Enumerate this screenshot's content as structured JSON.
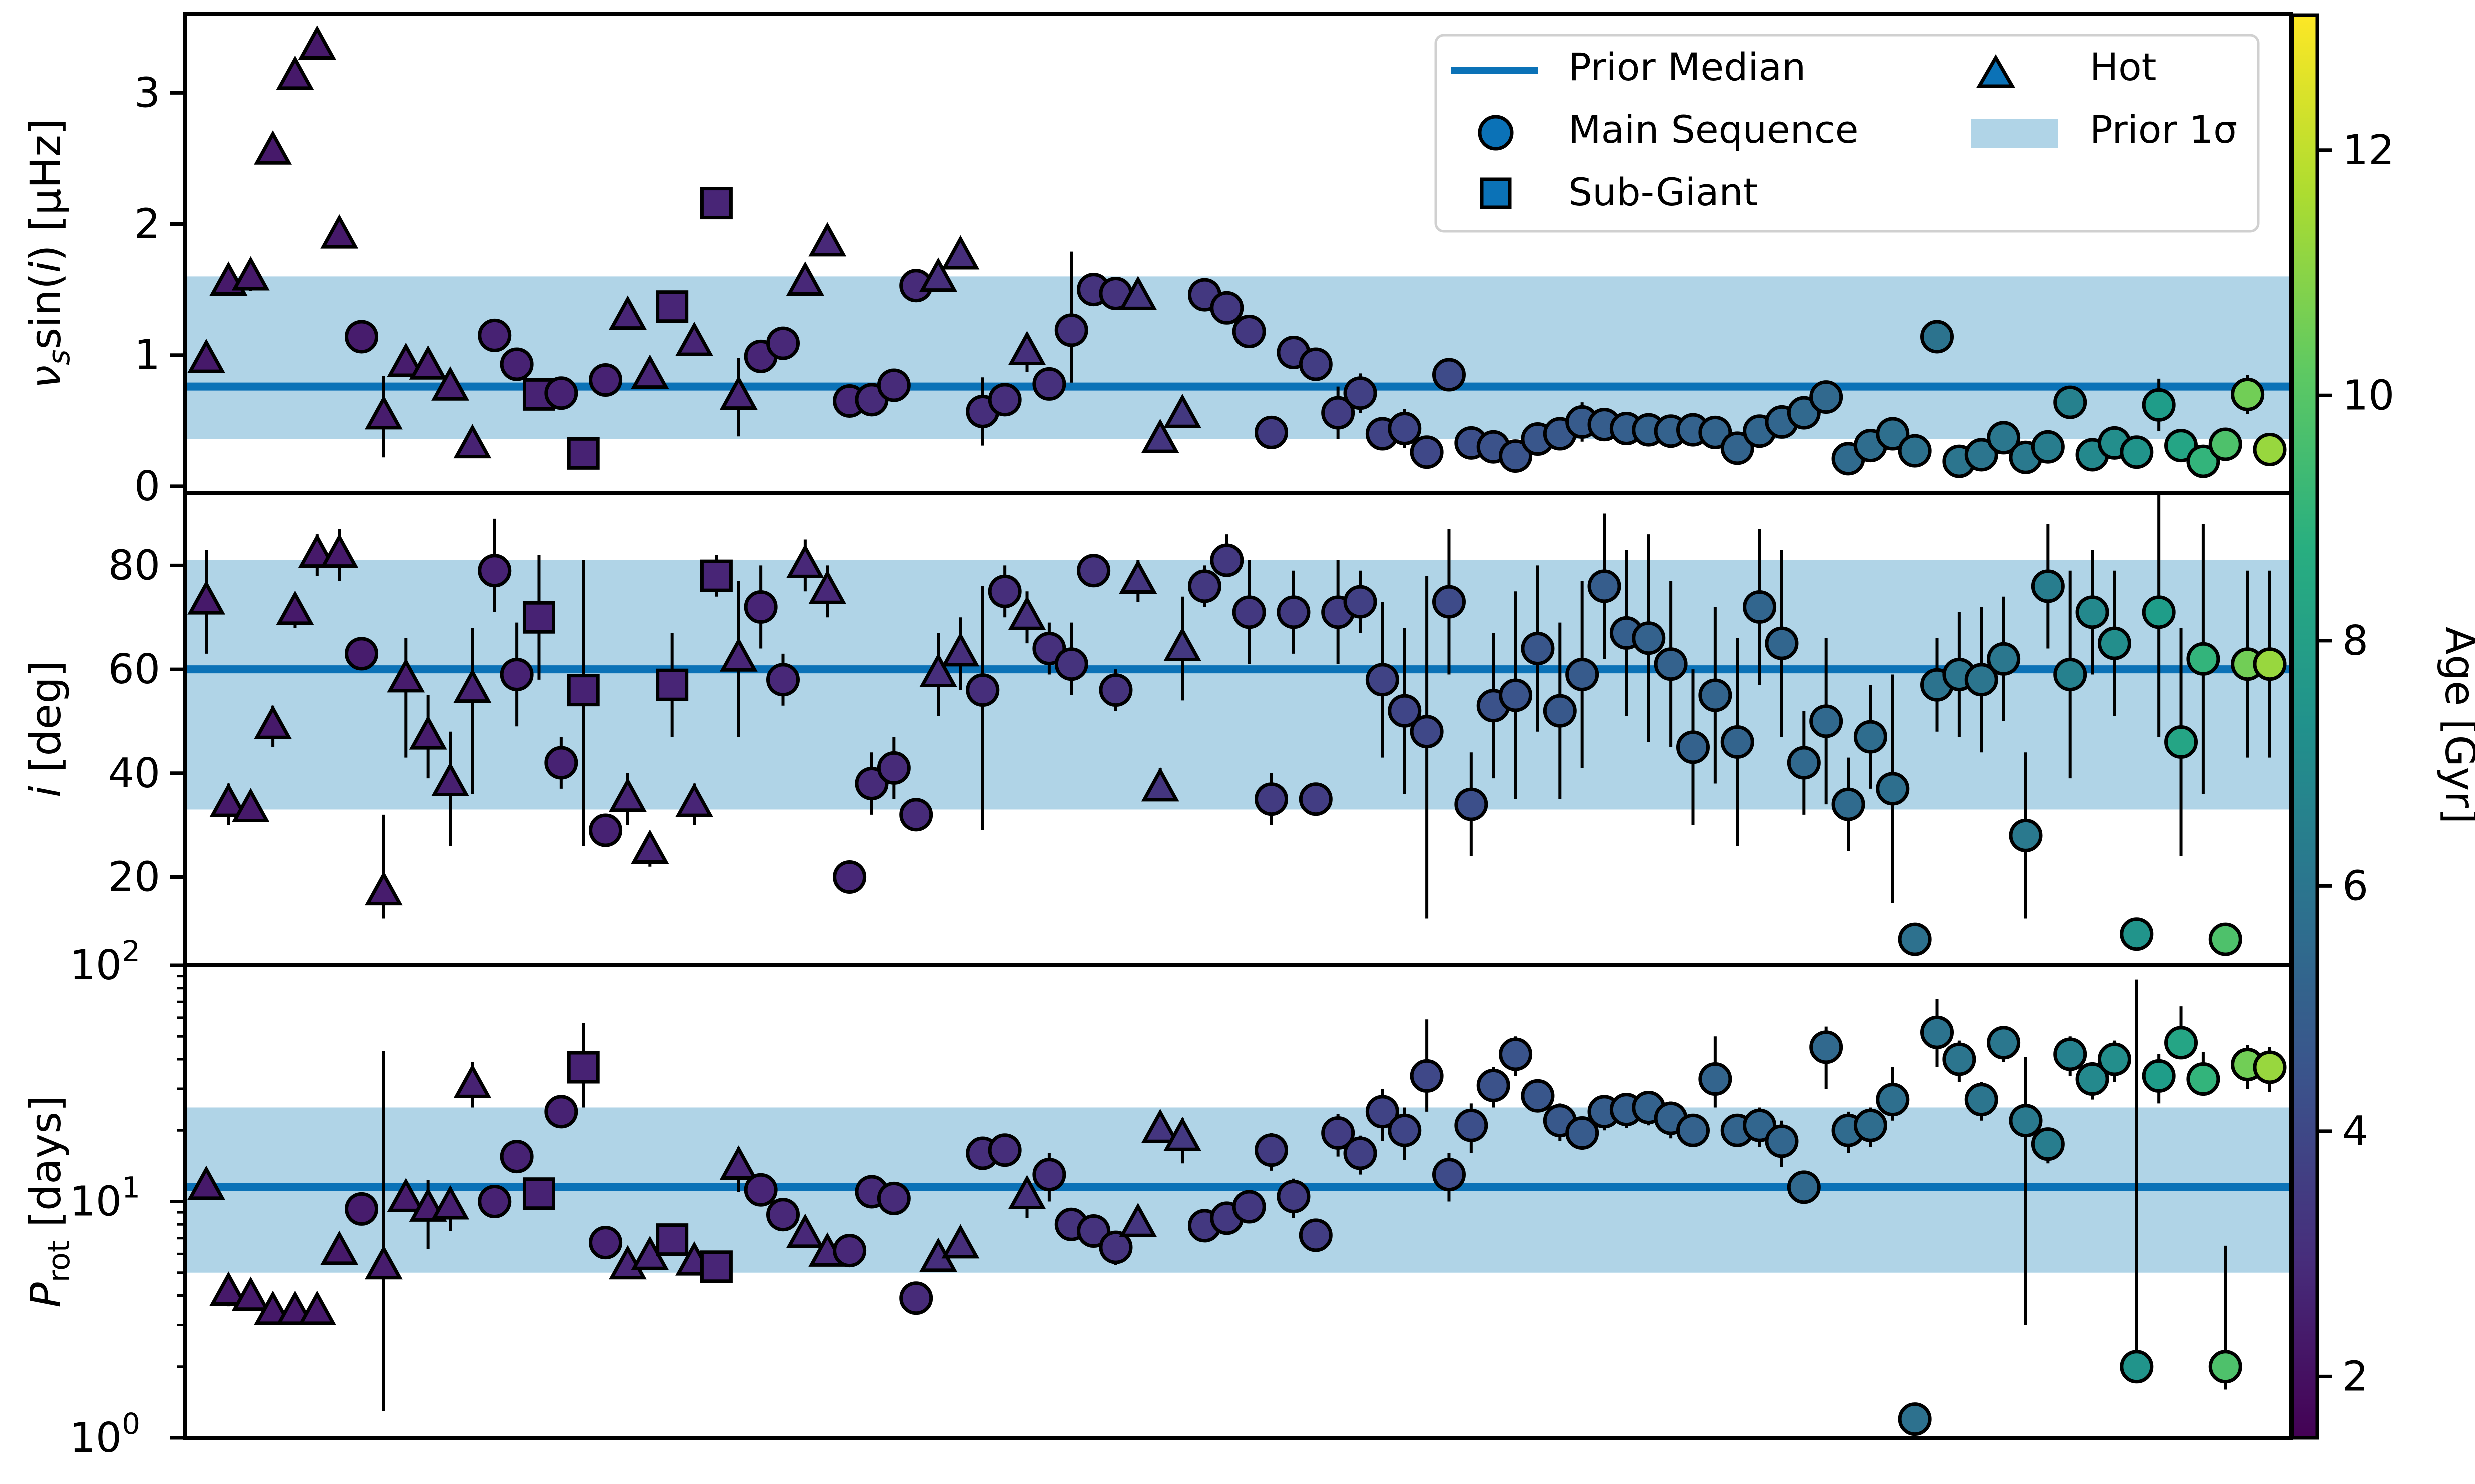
{
  "chart_data": {
    "type": "scatter",
    "x_count": 94,
    "colorbar": {
      "label": "Age [Gyr]",
      "range": [
        1.5,
        13.1
      ],
      "ticks": [
        2,
        4,
        6,
        8,
        10,
        12
      ],
      "colormap": "viridis"
    },
    "legend": {
      "placement": "top-right of top panel",
      "entries": [
        {
          "label": "Prior Median",
          "symbol": "line",
          "color": "#0b72b7"
        },
        {
          "label": "Hot",
          "symbol": "triangle",
          "color": "#0b72b7"
        },
        {
          "label": "Main Sequence",
          "symbol": "circle",
          "color": "#0b72b7"
        },
        {
          "label": "Prior 1σ",
          "symbol": "band",
          "color": "#b0d4e7"
        },
        {
          "label": "Sub-Giant",
          "symbol": "square",
          "color": "#0b72b7"
        }
      ]
    },
    "colors": {
      "prior_line": "#0b72b7",
      "prior_band": "#b0d4e7"
    },
    "markers": [
      "T",
      "T",
      "T",
      "T",
      "T",
      "T",
      "T",
      "C",
      "T",
      "T",
      "T",
      "T",
      "T",
      "C",
      "C",
      "S",
      "C",
      "S",
      "C",
      "T",
      "T",
      "S",
      "T",
      "S",
      "T",
      "C",
      "C",
      "T",
      "T",
      "C",
      "C",
      "C",
      "C",
      "T",
      "T",
      "C",
      "C",
      "T",
      "C",
      "C",
      "C",
      "C",
      "T",
      "T",
      "T",
      "C",
      "C",
      "C",
      "C",
      "C",
      "C",
      "C",
      "C",
      "C",
      "C",
      "C",
      "C",
      "C",
      "C",
      "C",
      "C",
      "C",
      "C",
      "C",
      "C",
      "C",
      "C",
      "C",
      "C",
      "C",
      "C",
      "C",
      "C",
      "C",
      "C",
      "C",
      "C",
      "C",
      "C",
      "C",
      "C",
      "C",
      "C",
      "C",
      "C",
      "C",
      "C",
      "C",
      "C",
      "C",
      "C",
      "C",
      "C",
      "C"
    ],
    "ages": [
      2.3,
      2.3,
      2.3,
      2.3,
      2.3,
      2.3,
      2.3,
      2.4,
      2.4,
      2.4,
      2.4,
      2.5,
      2.6,
      2.6,
      2.6,
      2.6,
      2.6,
      2.6,
      2.6,
      2.7,
      2.7,
      2.7,
      2.7,
      2.7,
      2.7,
      2.7,
      2.8,
      2.8,
      2.8,
      2.8,
      2.9,
      2.9,
      2.9,
      3.0,
      3.0,
      3.0,
      3.0,
      3.1,
      3.1,
      3.2,
      3.2,
      3.2,
      3.3,
      3.3,
      3.4,
      3.4,
      3.4,
      3.4,
      3.5,
      3.5,
      3.6,
      3.6,
      3.7,
      3.8,
      3.9,
      4.0,
      4.1,
      4.3,
      4.4,
      4.5,
      4.6,
      4.7,
      4.8,
      4.9,
      5.0,
      5.1,
      5.1,
      5.1,
      5.2,
      5.2,
      5.3,
      5.3,
      5.4,
      5.4,
      5.5,
      5.6,
      5.7,
      5.8,
      5.9,
      6.0,
      6.0,
      6.1,
      6.2,
      6.4,
      6.6,
      7.0,
      7.2,
      7.5,
      7.9,
      8.3,
      9.1,
      9.8,
      10.6,
      11.3
    ],
    "panels": [
      {
        "name": "vsini",
        "ylabel_main": "ν",
        "ylabel_sub": "s",
        "ylabel_rest": "sin(",
        "ylabel_var": "i",
        "ylabel_end": ") [μHz]",
        "yscale": "linear",
        "ylim": [
          -0.05,
          3.6
        ],
        "yticks": [
          0,
          1,
          2,
          3
        ],
        "ytick_labels": [
          "0",
          "1",
          "2",
          "3"
        ],
        "prior_median": 0.76,
        "prior_band": [
          0.36,
          1.6
        ],
        "values": [
          0.96,
          1.55,
          1.59,
          2.55,
          3.12,
          3.35,
          1.91,
          1.14,
          0.53,
          0.93,
          0.91,
          0.75,
          0.31,
          1.15,
          0.93,
          0.7,
          0.71,
          0.25,
          0.81,
          1.29,
          0.84,
          1.37,
          1.09,
          2.16,
          0.68,
          0.99,
          1.09,
          1.55,
          1.85,
          0.65,
          0.66,
          0.77,
          1.53,
          1.58,
          1.75,
          0.57,
          0.66,
          1.02,
          0.78,
          1.19,
          1.5,
          1.47,
          1.44,
          0.35,
          0.54,
          1.46,
          1.36,
          1.18,
          0.41,
          1.02,
          0.93,
          0.56,
          0.71,
          0.4,
          0.44,
          0.26,
          0.85,
          0.33,
          0.3,
          0.23,
          0.36,
          0.4,
          0.49,
          0.47,
          0.44,
          0.43,
          0.42,
          0.43,
          0.41,
          0.29,
          0.42,
          0.49,
          0.56,
          0.68,
          0.21,
          0.31,
          0.4,
          0.27,
          1.14,
          0.19,
          0.24,
          0.37,
          0.22,
          0.3,
          0.64,
          0.24,
          0.33,
          0.26,
          0.62,
          0.31,
          0.19,
          0.32,
          0.7,
          0.28
        ],
        "err_low": [
          0,
          0.1,
          0.1,
          0,
          0,
          0,
          0,
          0,
          0.31,
          0,
          0,
          0,
          0,
          0,
          0,
          0,
          0,
          0,
          0,
          0,
          0,
          0,
          0,
          0,
          0.3,
          0,
          0,
          0,
          0,
          0,
          0,
          0,
          0,
          0,
          0,
          0.26,
          0,
          0.15,
          0.1,
          0.4,
          0.08,
          0.08,
          0,
          0,
          0,
          0,
          0,
          0,
          0,
          0,
          0,
          0.2,
          0.15,
          0.1,
          0.15,
          0.1,
          0,
          0.1,
          0.1,
          0.1,
          0.12,
          0.12,
          0.15,
          0.12,
          0.1,
          0.1,
          0.1,
          0.1,
          0.1,
          0.1,
          0.1,
          0.1,
          0.1,
          0.1,
          0,
          0.1,
          0.1,
          0.1,
          0,
          0,
          0,
          0.1,
          0,
          0,
          0,
          0,
          0,
          0,
          0.2,
          0,
          0,
          0,
          0.15,
          0
        ],
        "err_high": [
          0,
          0.1,
          0.1,
          0,
          0,
          0,
          0,
          0,
          0.31,
          0,
          0,
          0,
          0,
          0,
          0,
          0,
          0,
          0,
          0,
          0,
          0,
          0,
          0,
          0,
          0.3,
          0,
          0,
          0,
          0,
          0,
          0,
          0,
          0,
          0,
          0,
          0.26,
          0,
          0.15,
          0.1,
          0.6,
          0.08,
          0.08,
          0,
          0,
          0,
          0,
          0,
          0,
          0,
          0,
          0,
          0.2,
          0.15,
          0.1,
          0.15,
          0.1,
          0,
          0.1,
          0.1,
          0.1,
          0.12,
          0.12,
          0.15,
          0.12,
          0.1,
          0.1,
          0.1,
          0.1,
          0.1,
          0.1,
          0.1,
          0.1,
          0.1,
          0.1,
          0,
          0.1,
          0.1,
          0.1,
          0,
          0,
          0,
          0.1,
          0,
          0,
          0,
          0,
          0,
          0,
          0.2,
          0,
          0,
          0,
          0.15,
          0
        ]
      },
      {
        "name": "inclination",
        "ylabel_var": "i",
        "ylabel_end": " [deg]",
        "yscale": "linear",
        "ylim": [
          3,
          94
        ],
        "yticks": [
          20,
          40,
          60,
          80
        ],
        "ytick_labels": [
          "20",
          "40",
          "60",
          "80"
        ],
        "prior_median": 60,
        "prior_band": [
          33,
          81
        ],
        "values": [
          73,
          34,
          33,
          49,
          71,
          82,
          82,
          63,
          17,
          58,
          47,
          38,
          56,
          79,
          59,
          70,
          42,
          56,
          29,
          35,
          25,
          57,
          34,
          78,
          62,
          72,
          58,
          80,
          75,
          20,
          38,
          41,
          32,
          59,
          63,
          56,
          75,
          70,
          64,
          61,
          79,
          56,
          77,
          37,
          64,
          76,
          81,
          71,
          35,
          71,
          35,
          71,
          73,
          58,
          52,
          48,
          73,
          34,
          53,
          55,
          64,
          52,
          59,
          76,
          67,
          66,
          61,
          45,
          55,
          46,
          72,
          65,
          42,
          50,
          34,
          47,
          37,
          8,
          57,
          59,
          58,
          62,
          28,
          76,
          59,
          71,
          65,
          9,
          71,
          46,
          62,
          8,
          61,
          61
        ],
        "err_low": [
          10,
          4,
          2,
          4,
          3,
          4,
          5,
          0,
          5,
          15,
          8,
          12,
          20,
          8,
          10,
          12,
          5,
          30,
          3,
          5,
          3,
          10,
          4,
          4,
          15,
          8,
          5,
          5,
          5,
          0,
          6,
          6,
          0,
          8,
          7,
          27,
          5,
          5,
          5,
          6,
          3,
          4,
          4,
          0,
          10,
          4,
          3,
          10,
          5,
          8,
          0,
          10,
          6,
          15,
          16,
          36,
          14,
          10,
          14,
          20,
          16,
          17,
          18,
          14,
          16,
          20,
          16,
          15,
          17,
          20,
          15,
          18,
          10,
          16,
          9,
          10,
          22,
          0,
          9,
          12,
          14,
          12,
          16,
          12,
          20,
          12,
          14,
          0,
          24,
          22,
          26,
          0,
          18,
          18
        ],
        "err_high": [
          10,
          4,
          2,
          4,
          3,
          4,
          5,
          0,
          15,
          8,
          8,
          10,
          12,
          10,
          10,
          12,
          5,
          25,
          3,
          5,
          3,
          10,
          4,
          4,
          15,
          8,
          5,
          5,
          5,
          0,
          6,
          6,
          0,
          8,
          7,
          20,
          5,
          5,
          5,
          8,
          3,
          4,
          4,
          4,
          10,
          4,
          5,
          10,
          5,
          8,
          0,
          10,
          6,
          15,
          16,
          30,
          14,
          10,
          14,
          20,
          16,
          17,
          18,
          14,
          16,
          20,
          16,
          15,
          17,
          20,
          15,
          18,
          10,
          16,
          9,
          10,
          22,
          0,
          9,
          12,
          14,
          12,
          16,
          12,
          20,
          12,
          14,
          0,
          24,
          22,
          26,
          0,
          18,
          18
        ]
      },
      {
        "name": "period",
        "ylabel_main": "P",
        "ylabel_sub": "rot",
        "ylabel_end": " [days]",
        "yscale": "log",
        "ylim": [
          1,
          100
        ],
        "yticks": [
          1,
          10,
          100
        ],
        "ytick_labels": [
          "10",
          "10",
          "10"
        ],
        "ytick_exponents": [
          "0",
          "1",
          "2"
        ],
        "prior_median": 11.5,
        "prior_band": [
          5,
          25
        ],
        "values": [
          11.5,
          4.1,
          3.9,
          3.4,
          3.4,
          3.4,
          6.1,
          9.3,
          5.3,
          10.2,
          9.3,
          9.5,
          31,
          10,
          15.5,
          10.8,
          24,
          37,
          6.7,
          5.3,
          5.8,
          6.9,
          5.5,
          5.3,
          14,
          11.2,
          8.8,
          7.2,
          6,
          6.2,
          11,
          10.3,
          3.9,
          5.7,
          6.5,
          16,
          16.5,
          10.5,
          13,
          8,
          7.5,
          6.4,
          8,
          20,
          18.5,
          7.9,
          8.5,
          9.5,
          16.5,
          10.5,
          7.2,
          19.5,
          16,
          24,
          20,
          34,
          13,
          21,
          31,
          42,
          28,
          22,
          19.5,
          24,
          24.5,
          25,
          22.5,
          20,
          33,
          20,
          21,
          18,
          11.5,
          45,
          20,
          21,
          27,
          1.2,
          52,
          40,
          27,
          47,
          22,
          17.5,
          42,
          33,
          40,
          2,
          34,
          47,
          33,
          2,
          38,
          37
        ],
        "err_low": [
          1,
          0.5,
          0.4,
          0.3,
          0.3,
          0.3,
          0.7,
          0,
          4,
          1,
          3,
          2,
          6,
          0,
          0,
          0,
          0,
          12,
          0.6,
          0.6,
          0,
          0.6,
          0,
          0.5,
          3,
          0,
          0.8,
          0.6,
          0,
          0,
          0,
          1,
          0,
          0,
          0,
          0,
          0,
          2,
          3,
          1,
          1,
          1,
          0,
          0,
          4,
          0,
          0,
          0,
          3,
          2,
          0,
          4,
          3,
          6,
          5,
          10,
          3,
          5,
          6,
          8,
          4,
          4,
          3,
          4,
          4,
          4,
          4,
          3,
          8,
          3,
          4,
          4,
          0,
          15,
          4,
          4,
          5,
          0,
          15,
          8,
          5,
          8,
          19,
          3,
          8,
          6,
          8,
          0,
          8,
          7,
          5,
          0.4,
          8,
          8
        ],
        "err_high": [
          1,
          0.5,
          0.4,
          0.3,
          0.3,
          0.3,
          0.7,
          0,
          38,
          1,
          3,
          2,
          8,
          0,
          0,
          0,
          0,
          20,
          0.6,
          0.6,
          0,
          0.6,
          0,
          0.5,
          3,
          0,
          0.8,
          0.6,
          0,
          0,
          0,
          1,
          0,
          0,
          0,
          0,
          0,
          2,
          3,
          1,
          1,
          1,
          0,
          0,
          4,
          0,
          0,
          0,
          3,
          2,
          0,
          4,
          3,
          6,
          5,
          25,
          3,
          5,
          6,
          8,
          4,
          4,
          3,
          4,
          4,
          4,
          4,
          3,
          17,
          3,
          4,
          4,
          0,
          10,
          4,
          4,
          10,
          0,
          20,
          8,
          5,
          8,
          19,
          3,
          8,
          6,
          8,
          85,
          8,
          20,
          10,
          4.5,
          8,
          8
        ]
      }
    ]
  }
}
